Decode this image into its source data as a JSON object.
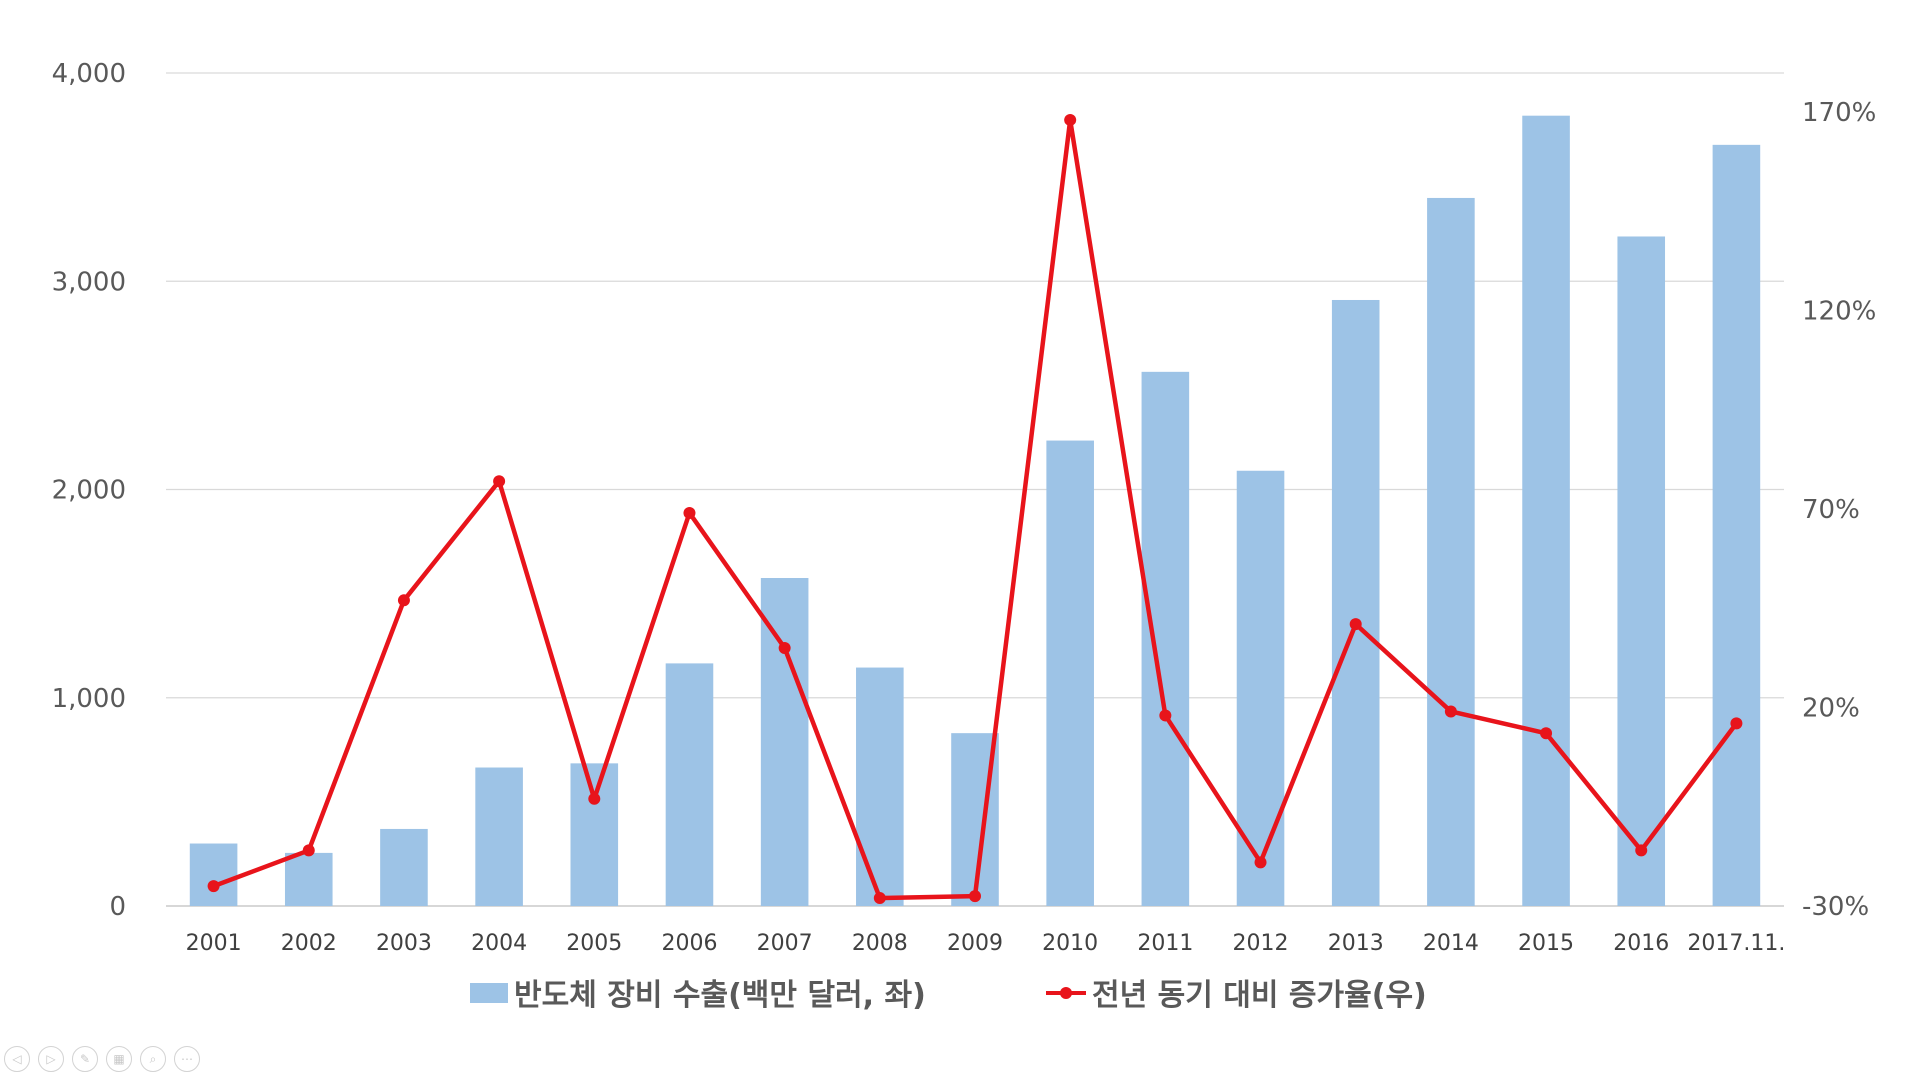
{
  "chart_data": {
    "type": "bar+line",
    "categories": [
      "2001",
      "2002",
      "2003",
      "2004",
      "2005",
      "2006",
      "2007",
      "2008",
      "2009",
      "2010",
      "2011",
      "2012",
      "2013",
      "2014",
      "2015",
      "2016",
      "2017.11."
    ],
    "series": [
      {
        "name": "반도체 장비 수출(백만 달러, 좌)",
        "type": "bar",
        "axis": "left",
        "color": "#9dc3e6",
        "values": [
          300,
          255,
          370,
          665,
          685,
          1165,
          1575,
          1145,
          830,
          2235,
          2565,
          2090,
          2910,
          3400,
          3795,
          3215,
          3655
        ]
      },
      {
        "name": "전년 동기 대비 증가율(우)",
        "type": "line",
        "axis": "right",
        "color": "#e8141b",
        "values": [
          -25,
          -16,
          47,
          77,
          -3,
          69,
          35,
          -28,
          -27.5,
          168,
          18,
          -19,
          41,
          19,
          13.5,
          -16,
          16
        ]
      }
    ],
    "left_axis": {
      "ylim": [
        0,
        4000
      ],
      "ticks": [
        "0",
        "1,000",
        "2,000",
        "3,000",
        "4,000"
      ]
    },
    "right_axis": {
      "ylim": [
        -30,
        180
      ],
      "ticks": [
        "-30%",
        "20%",
        "70%",
        "120%",
        "170%"
      ]
    },
    "grid": true,
    "legend_position": "bottom"
  },
  "toolbar": {
    "buttons": [
      {
        "icon": "previous-icon",
        "glyph": "◁"
      },
      {
        "icon": "next-icon",
        "glyph": "▷"
      },
      {
        "icon": "pen-icon",
        "glyph": "✎"
      },
      {
        "icon": "slides-icon",
        "glyph": "▦"
      },
      {
        "icon": "zoom-icon",
        "glyph": "⌕"
      },
      {
        "icon": "more-icon",
        "glyph": "⋯"
      }
    ]
  }
}
